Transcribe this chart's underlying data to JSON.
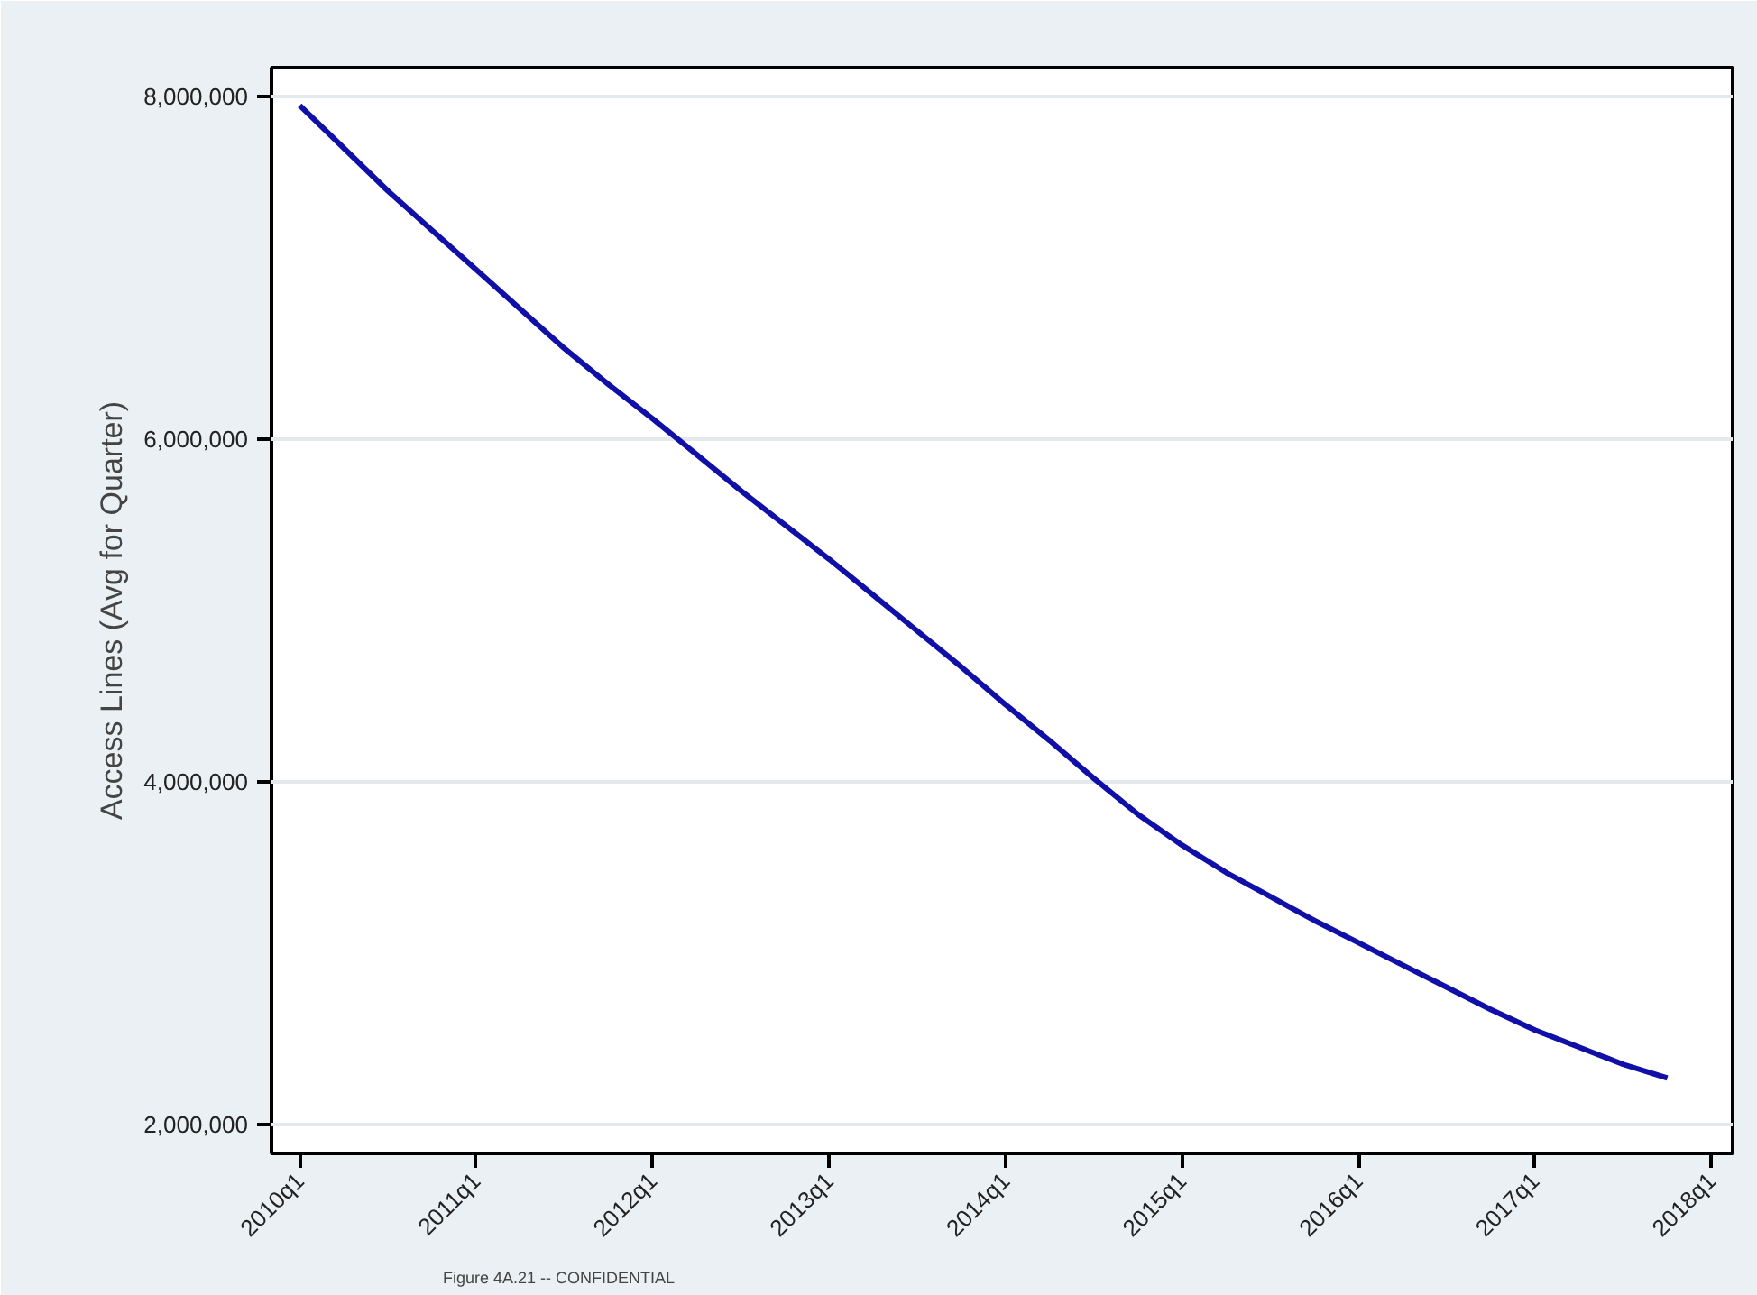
{
  "chart_data": {
    "type": "line",
    "ylabel": "Access Lines (Avg for Quarter)",
    "annotations": [
      "Figure 4A.21 -- CONFIDENTIAL"
    ],
    "categories": [
      "2010q1",
      null,
      null,
      null,
      "2011q1",
      null,
      null,
      null,
      "2012q1",
      null,
      null,
      null,
      "2013q1",
      null,
      null,
      null,
      "2014q1",
      null,
      null,
      null,
      "2015q1",
      null,
      null,
      null,
      "2016q1",
      null,
      null,
      null,
      "2017q1",
      null,
      null,
      null,
      "2018q1"
    ],
    "series": [
      {
        "color": "#1010a8",
        "values": [
          7950000,
          7700000,
          7450000,
          7220000,
          6990000,
          6760000,
          6530000,
          6320000,
          6120000,
          5910000,
          5700000,
          5500000,
          5300000,
          5090000,
          4880000,
          4670000,
          4450000,
          4240000,
          4020000,
          3810000,
          3630000,
          3470000,
          3330000,
          3190000,
          3060000,
          2930000,
          2800000,
          2670000,
          2550000,
          2450000,
          2350000,
          2270000,
          null
        ]
      }
    ],
    "ylim": [
      1830000,
      8170000
    ],
    "yticks": [
      {
        "value": 2000000,
        "label": "2,000,000"
      },
      {
        "value": 4000000,
        "label": "4,000,000"
      },
      {
        "value": 6000000,
        "label": "6,000,000"
      },
      {
        "value": 8000000,
        "label": "8,000,000"
      }
    ],
    "grid": "y",
    "line_style": "solid"
  }
}
